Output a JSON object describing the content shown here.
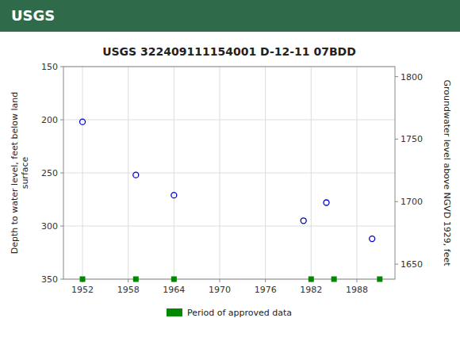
{
  "chart_data": {
    "type": "scatter",
    "title": "USGS 322409111154001 D-12-11 07BDD",
    "annotations": [
      "USGS"
    ],
    "ylabel": "Depth to water level, feet below land\nsurface",
    "y2label": "Groundwater level above NGVD 1929, feet",
    "series": [
      {
        "x": [
          1952,
          1959,
          1964,
          1981,
          1984,
          1990
        ],
        "values": [
          202,
          252,
          271,
          295,
          278,
          312
        ],
        "color": "#0000CC",
        "marker": "circle"
      },
      {
        "name": "Period of approved data",
        "x": [
          1952,
          1959,
          1964,
          1982,
          1985,
          1991
        ],
        "values": [
          350,
          350,
          350,
          350,
          350,
          350
        ],
        "color": "#008800",
        "marker": "square"
      }
    ],
    "xlim": [
      1949.5,
      1993
    ],
    "xticks": [
      1952,
      1958,
      1964,
      1970,
      1976,
      1982,
      1988
    ],
    "ylim": [
      350,
      150
    ],
    "yticks": [
      150,
      200,
      250,
      300,
      350
    ],
    "y2lim": [
      1638,
      1808
    ],
    "y2ticks": [
      1650,
      1700,
      1750,
      1800
    ],
    "grid": true,
    "legend": "bottom"
  }
}
